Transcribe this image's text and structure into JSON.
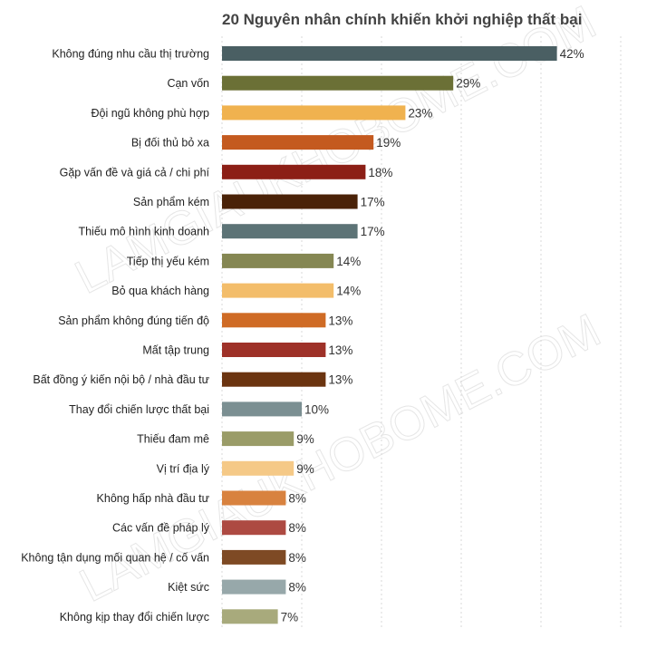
{
  "chart_data": {
    "type": "bar",
    "orientation": "horizontal",
    "title": "20 Nguyên nhân chính khiến khởi nghiệp thất bại",
    "xlabel": "",
    "ylabel": "",
    "xlim": [
      0,
      50
    ],
    "grid": true,
    "value_suffix": "%",
    "categories": [
      "Không đúng nhu cầu thị trường",
      "Cạn vốn",
      "Đội ngũ không phù hợp",
      "Bị đối thủ bỏ xa",
      "Gặp vấn đề và giá cả / chi phí",
      "Sản phẩm kém",
      "Thiếu mô hình kinh doanh",
      "Tiếp thị yếu kém",
      "Bỏ qua khách hàng",
      "Sản phẩm không đúng tiến độ",
      "Mất tập trung",
      "Bất đồng ý kiến nội bộ / nhà đầu tư",
      "Thay đổi chiến lược thất bại",
      "Thiếu đam mê",
      "Vị trí địa lý",
      "Không hấp nhà đầu tư",
      "Các vấn đề pháp lý",
      "Không tận dụng mối quan hệ / cố vấn",
      "Kiệt sức",
      "Không kịp thay đổi chiến lược"
    ],
    "values": [
      42,
      29,
      23,
      19,
      18,
      17,
      17,
      14,
      14,
      13,
      13,
      13,
      10,
      9,
      9,
      8,
      8,
      8,
      8,
      7
    ],
    "value_labels": [
      "42%",
      "29%",
      "23%",
      "19%",
      "18%",
      "17%",
      "17%",
      "14%",
      "14%",
      "13%",
      "13%",
      "13%",
      "10%",
      "9%",
      "9%",
      "8%",
      "8%",
      "8%",
      "8%",
      "7%"
    ],
    "colors": [
      "#4a5f63",
      "#6b7036",
      "#f0b24f",
      "#c45a1f",
      "#8c1f16",
      "#4a2208",
      "#5c7376",
      "#858753",
      "#f3bd6a",
      "#cf6b25",
      "#9e3128",
      "#6b3410",
      "#7b8f92",
      "#9a9c68",
      "#f5c987",
      "#d8823f",
      "#ad4a42",
      "#7e4a24",
      "#97a8aa",
      "#a8aa7c"
    ]
  },
  "watermark_text": "LAMGIAUKHOBOME.COM"
}
